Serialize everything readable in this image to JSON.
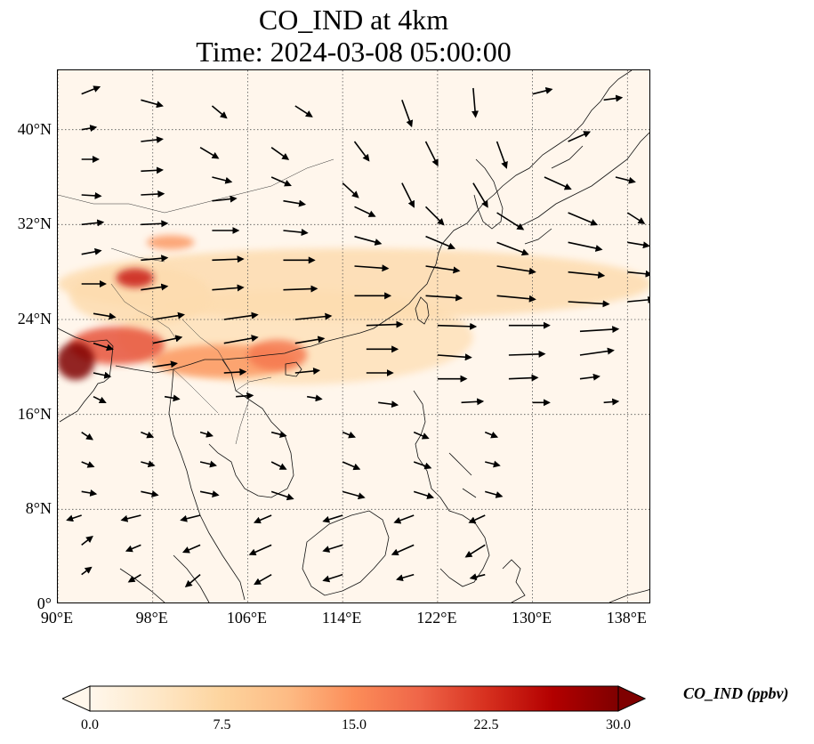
{
  "title": {
    "line1": "CO_IND at 4km",
    "line2": "Time: 2024-03-08 05:00:00"
  },
  "map": {
    "projection": "PlateCarree",
    "lon_range": [
      90,
      140
    ],
    "lat_range": [
      0,
      45
    ],
    "gridlines": true,
    "lat_ticks": [
      {
        "value": 0,
        "label": "0°"
      },
      {
        "value": 8,
        "label": "8°N"
      },
      {
        "value": 16,
        "label": "16°N"
      },
      {
        "value": 24,
        "label": "24°N"
      },
      {
        "value": 32,
        "label": "32°N"
      },
      {
        "value": 40,
        "label": "40°N"
      }
    ],
    "lon_ticks": [
      {
        "value": 90,
        "label": "90°E"
      },
      {
        "value": 98,
        "label": "98°E"
      },
      {
        "value": 106,
        "label": "106°E"
      },
      {
        "value": 114,
        "label": "114°E"
      },
      {
        "value": 122,
        "label": "122°E"
      },
      {
        "value": 130,
        "label": "130°E"
      },
      {
        "value": 138,
        "label": "138°E"
      }
    ],
    "colormap": "OrRd",
    "concentration_plumes": [
      {
        "lon": 91.5,
        "lat": 20.5,
        "sigma_lon": 1.6,
        "sigma_lat": 1.6,
        "value": 30
      },
      {
        "lon": 95.0,
        "lat": 21.8,
        "sigma_lon": 4.0,
        "sigma_lat": 1.6,
        "value": 20
      },
      {
        "lon": 104.0,
        "lat": 20.5,
        "sigma_lon": 6.0,
        "sigma_lat": 1.4,
        "value": 14
      },
      {
        "lon": 108.5,
        "lat": 21.0,
        "sigma_lon": 2.5,
        "sigma_lat": 1.3,
        "value": 17
      },
      {
        "lon": 96.5,
        "lat": 27.5,
        "sigma_lon": 1.6,
        "sigma_lat": 0.8,
        "value": 24
      },
      {
        "lon": 99.5,
        "lat": 30.5,
        "sigma_lon": 2.0,
        "sigma_lat": 0.6,
        "value": 14
      },
      {
        "lon": 115.0,
        "lat": 27.0,
        "sigma_lon": 25.0,
        "sigma_lat": 3.0,
        "value": 6
      },
      {
        "lon": 110.0,
        "lat": 22.5,
        "sigma_lon": 15.0,
        "sigma_lat": 4.0,
        "value": 5
      },
      {
        "lon": 97.0,
        "lat": 26.0,
        "sigma_lon": 6.0,
        "sigma_lat": 2.5,
        "value": 6
      }
    ],
    "wind_arrows": [
      [
        92,
        43,
        1.5,
        0.6
      ],
      [
        97,
        42.5,
        1.8,
        -0.5
      ],
      [
        103,
        42,
        1.2,
        -1.0
      ],
      [
        110,
        42,
        1.4,
        -0.9
      ],
      [
        119,
        42.5,
        0.8,
        -2.2
      ],
      [
        125,
        43.5,
        0.2,
        -2.4
      ],
      [
        130,
        43,
        1.6,
        0.4
      ],
      [
        136,
        42.5,
        1.5,
        0.2
      ],
      [
        92,
        40,
        1.2,
        0.2
      ],
      [
        97,
        39,
        1.8,
        0.2
      ],
      [
        102,
        38.5,
        1.5,
        -0.9
      ],
      [
        108,
        38.5,
        1.4,
        -1.0
      ],
      [
        115,
        39,
        1.2,
        -1.6
      ],
      [
        121,
        39,
        1.0,
        -2.0
      ],
      [
        127,
        39,
        0.8,
        -2.2
      ],
      [
        133,
        39,
        1.8,
        0.8
      ],
      [
        92,
        37.5,
        1.4,
        0.0
      ],
      [
        97,
        36.5,
        1.8,
        0.1
      ],
      [
        103,
        36,
        1.6,
        -0.4
      ],
      [
        108,
        36,
        1.6,
        -0.7
      ],
      [
        114,
        35.5,
        1.3,
        -1.2
      ],
      [
        119,
        35.5,
        1.0,
        -2.0
      ],
      [
        125,
        35.5,
        1.2,
        -2.0
      ],
      [
        131,
        36,
        2.2,
        -1.0
      ],
      [
        137,
        36,
        1.6,
        -0.4
      ],
      [
        92,
        34.5,
        1.6,
        -0.1
      ],
      [
        97,
        34.5,
        1.9,
        0.1
      ],
      [
        103,
        34,
        2.0,
        0.2
      ],
      [
        109,
        34,
        1.8,
        -0.3
      ],
      [
        115,
        33.5,
        1.7,
        -0.8
      ],
      [
        121,
        33.5,
        1.5,
        -1.5
      ],
      [
        127,
        33,
        2.2,
        -1.4
      ],
      [
        133,
        33,
        2.4,
        -1.0
      ],
      [
        138,
        33,
        1.4,
        -0.9
      ],
      [
        92,
        32,
        1.8,
        0.2
      ],
      [
        97,
        32,
        2.2,
        0.1
      ],
      [
        103,
        31.5,
        2.2,
        0.0
      ],
      [
        109,
        31.5,
        2.0,
        -0.2
      ],
      [
        115,
        31,
        2.2,
        -0.6
      ],
      [
        121,
        31,
        2.4,
        -1.0
      ],
      [
        127,
        30.5,
        2.6,
        -1.0
      ],
      [
        133,
        30.5,
        2.8,
        -0.6
      ],
      [
        138,
        30.5,
        1.8,
        -0.3
      ],
      [
        92,
        29.5,
        1.6,
        0.3
      ],
      [
        97,
        29,
        2.2,
        0.2
      ],
      [
        103,
        29,
        2.6,
        0.1
      ],
      [
        109,
        29,
        2.6,
        0.0
      ],
      [
        115,
        28.5,
        2.8,
        -0.2
      ],
      [
        121,
        28.5,
        2.8,
        -0.4
      ],
      [
        127,
        28.5,
        3.2,
        -0.5
      ],
      [
        133,
        28,
        3.0,
        -0.3
      ],
      [
        138,
        28,
        2.0,
        -0.2
      ],
      [
        92,
        27,
        2.0,
        0.0
      ],
      [
        97,
        26.5,
        2.2,
        0.3
      ],
      [
        103,
        26.5,
        2.6,
        0.2
      ],
      [
        109,
        26.5,
        2.8,
        0.1
      ],
      [
        115,
        26,
        3.0,
        0.0
      ],
      [
        121,
        26,
        3.0,
        -0.2
      ],
      [
        127,
        26,
        3.2,
        -0.3
      ],
      [
        133,
        25.5,
        3.4,
        -0.2
      ],
      [
        138,
        25.5,
        2.2,
        0.2
      ],
      [
        93,
        24.5,
        1.8,
        -0.3
      ],
      [
        98,
        24,
        2.6,
        0.4
      ],
      [
        104,
        24,
        2.8,
        0.4
      ],
      [
        110,
        24,
        3.0,
        0.3
      ],
      [
        116,
        23.5,
        3.0,
        0.1
      ],
      [
        122,
        23.5,
        3.2,
        -0.1
      ],
      [
        128,
        23.5,
        3.4,
        0.0
      ],
      [
        134,
        23,
        3.2,
        0.2
      ],
      [
        93,
        22,
        1.6,
        -0.5
      ],
      [
        98,
        22,
        2.4,
        0.5
      ],
      [
        104,
        22,
        2.8,
        0.5
      ],
      [
        110,
        22,
        2.4,
        0.4
      ],
      [
        116,
        21.5,
        2.6,
        0.0
      ],
      [
        122,
        21,
        2.8,
        -0.2
      ],
      [
        128,
        21,
        3.0,
        0.1
      ],
      [
        134,
        21,
        2.8,
        0.4
      ],
      [
        93,
        19.5,
        1.4,
        -0.3
      ],
      [
        98,
        20,
        2.0,
        0.3
      ],
      [
        104,
        19.5,
        1.8,
        0.1
      ],
      [
        110,
        19.5,
        2.0,
        0.2
      ],
      [
        116,
        19.5,
        2.2,
        0.0
      ],
      [
        122,
        19,
        2.4,
        0.0
      ],
      [
        128,
        19,
        2.4,
        0.1
      ],
      [
        134,
        19,
        1.6,
        0.2
      ],
      [
        93,
        17.5,
        1.0,
        -0.5
      ],
      [
        99,
        17.5,
        1.2,
        -0.2
      ],
      [
        105,
        17.5,
        1.4,
        0.1
      ],
      [
        111,
        17.5,
        1.2,
        -0.2
      ],
      [
        117,
        17,
        1.6,
        -0.2
      ],
      [
        124,
        17,
        1.8,
        0.1
      ],
      [
        130,
        17,
        1.4,
        0.0
      ],
      [
        136,
        17,
        1.2,
        0.1
      ],
      [
        92,
        14.5,
        0.9,
        -0.6
      ],
      [
        97,
        14.5,
        1.0,
        -0.4
      ],
      [
        102,
        14.5,
        1.0,
        -0.3
      ],
      [
        108,
        14.5,
        1.2,
        -0.3
      ],
      [
        114,
        14.5,
        1.0,
        -0.4
      ],
      [
        120,
        14.5,
        1.2,
        -0.5
      ],
      [
        126,
        14.5,
        1.0,
        -0.4
      ],
      [
        92,
        12,
        1.0,
        -0.4
      ],
      [
        97,
        12,
        1.1,
        -0.3
      ],
      [
        102,
        12,
        1.3,
        -0.3
      ],
      [
        108,
        12,
        1.2,
        -0.6
      ],
      [
        114,
        12,
        1.4,
        -0.6
      ],
      [
        120,
        12,
        1.4,
        -0.5
      ],
      [
        126,
        12,
        1.2,
        -0.3
      ],
      [
        92,
        9.5,
        1.2,
        -0.2
      ],
      [
        97,
        9.5,
        1.4,
        -0.3
      ],
      [
        102,
        9.5,
        1.5,
        -0.3
      ],
      [
        108,
        9.5,
        1.8,
        -0.6
      ],
      [
        114,
        9.5,
        1.8,
        -0.5
      ],
      [
        120,
        9.5,
        1.6,
        -0.5
      ],
      [
        126,
        9.5,
        1.4,
        -0.4
      ],
      [
        92,
        7.5,
        -1.2,
        -0.4
      ],
      [
        97,
        7.5,
        -1.6,
        -0.4
      ],
      [
        102,
        7.5,
        -1.6,
        -0.4
      ],
      [
        108,
        7.5,
        -1.4,
        -0.6
      ],
      [
        114,
        7.5,
        -1.6,
        -0.5
      ],
      [
        120,
        7.5,
        -1.6,
        -0.6
      ],
      [
        126,
        7.5,
        -1.3,
        -0.6
      ],
      [
        92,
        5,
        0.9,
        0.7
      ],
      [
        97,
        5,
        -1.2,
        -0.5
      ],
      [
        102,
        5,
        -1.4,
        -0.6
      ],
      [
        108,
        5,
        -1.8,
        -0.8
      ],
      [
        114,
        5,
        -1.6,
        -0.5
      ],
      [
        120,
        5,
        -1.8,
        -0.8
      ],
      [
        126,
        5,
        -1.6,
        -1.0
      ],
      [
        92,
        2.5,
        0.8,
        0.6
      ],
      [
        97,
        2.5,
        -1.0,
        -0.6
      ],
      [
        102,
        2.5,
        -1.2,
        -1.0
      ],
      [
        108,
        2.5,
        -1.4,
        -0.8
      ],
      [
        114,
        2.5,
        -1.6,
        -0.5
      ],
      [
        120,
        2.5,
        -1.4,
        -0.4
      ],
      [
        126,
        2.5,
        -1.2,
        -0.3
      ]
    ]
  },
  "colorbar": {
    "label": "CO_IND (ppbv)",
    "min": 0.0,
    "max": 30.0,
    "extend": "both",
    "ticks": [
      {
        "value": 0.0,
        "label": "0.0"
      },
      {
        "value": 7.5,
        "label": "7.5"
      },
      {
        "value": 15.0,
        "label": "15.0"
      },
      {
        "value": 22.5,
        "label": "22.5"
      },
      {
        "value": 30.0,
        "label": "30.0"
      }
    ],
    "colors": [
      "#fff7ec",
      "#fee8c8",
      "#fdd49e",
      "#fdbb84",
      "#fc8d59",
      "#ef6548",
      "#d7301f",
      "#b30000",
      "#7f0000"
    ]
  }
}
